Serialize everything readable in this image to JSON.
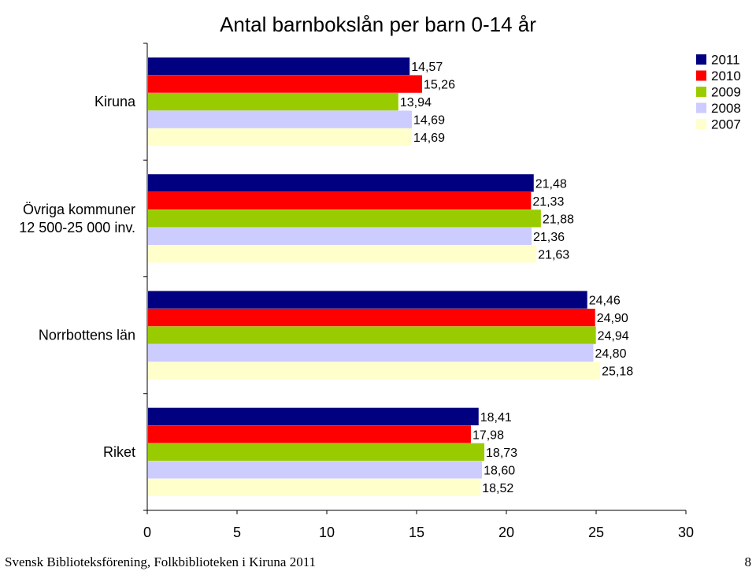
{
  "chart_data": {
    "type": "bar",
    "orientation": "horizontal",
    "title": "Antal barnbokslån per barn 0-14 år",
    "categories": [
      "Kiruna",
      "Övriga kommuner\n12 500-25 000 inv.",
      "Norrbottens län",
      "Riket"
    ],
    "series": [
      {
        "name": "2011",
        "color": "#000080",
        "values": [
          14.57,
          21.48,
          24.46,
          18.41
        ],
        "labels": [
          "14,57",
          "21,48",
          "24,46",
          "18,41"
        ]
      },
      {
        "name": "2010",
        "color": "#ff0000",
        "values": [
          15.26,
          21.33,
          24.9,
          17.98
        ],
        "labels": [
          "15,26",
          "21,33",
          "24,90",
          "17,98"
        ]
      },
      {
        "name": "2009",
        "color": "#99cc00",
        "values": [
          13.94,
          21.88,
          24.94,
          18.73
        ],
        "labels": [
          "13,94",
          "21,88",
          "24,94",
          "18,73"
        ]
      },
      {
        "name": "2008",
        "color": "#ccccff",
        "values": [
          14.69,
          21.36,
          24.8,
          18.6
        ],
        "labels": [
          "14,69",
          "21,36",
          "24,80",
          "18,60"
        ]
      },
      {
        "name": "2007",
        "color": "#ffffcc",
        "values": [
          14.69,
          21.63,
          25.18,
          18.52
        ],
        "labels": [
          "14,69",
          "21,63",
          "25,18",
          "18,52"
        ]
      }
    ],
    "xlim": [
      0,
      30
    ],
    "xticks": [
      "0",
      "5",
      "10",
      "15",
      "20",
      "25",
      "30"
    ],
    "grid": false,
    "legend_position": "top-right",
    "plot_background": "#ffffff",
    "page_background": "#ffffff"
  },
  "footer": {
    "left": "Svensk Biblioteksförening, Folkbiblioteken i Kiruna 2011",
    "page_number": "8"
  }
}
